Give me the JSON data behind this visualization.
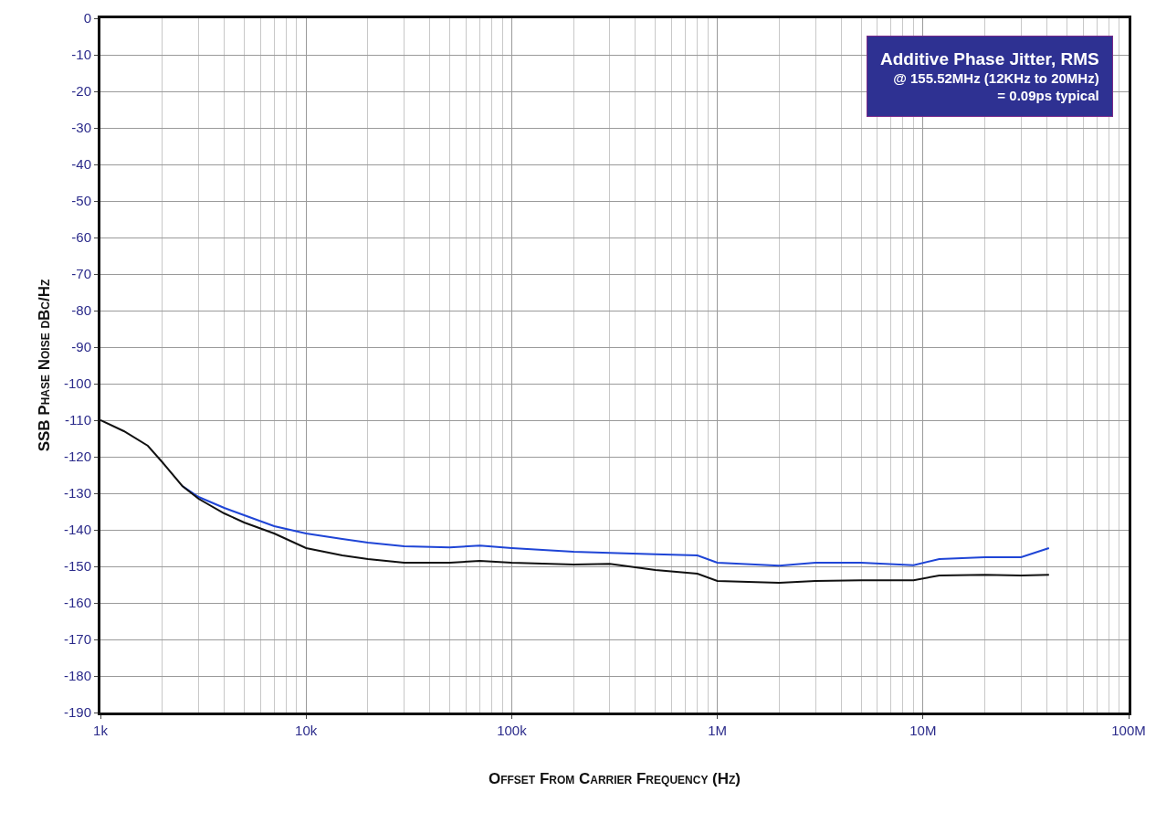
{
  "chart_data": {
    "type": "line",
    "xlabel": "Offset From Carrier Frequency (Hz)",
    "ylabel": "SSB Phase Noise dBc/Hz",
    "annotations": [
      "Additive Phase Jitter, RMS\n@ 155.52MHz (12KHz to 20MHz)\n= 0.09ps typical"
    ],
    "log": "x",
    "grid": true,
    "marker": "none",
    "line_style": "solid",
    "xlim": [
      1000,
      100000000
    ],
    "xticks": [
      {
        "value": 1000,
        "label": "1k"
      },
      {
        "value": 10000,
        "label": "10k"
      },
      {
        "value": 100000,
        "label": "100k"
      },
      {
        "value": 1000000,
        "label": "1M"
      },
      {
        "value": 10000000,
        "label": "10M"
      },
      {
        "value": 100000000,
        "label": "100M"
      }
    ],
    "ylim": [
      -190,
      0
    ],
    "yticks": [
      0,
      -10,
      -20,
      -30,
      -40,
      -50,
      -60,
      -70,
      -80,
      -90,
      -100,
      -110,
      -120,
      -130,
      -140,
      -150,
      -160,
      -170,
      -180,
      -190
    ],
    "x": [
      1000,
      1300,
      1700,
      2000,
      2500,
      3000,
      4000,
      5000,
      7000,
      10000,
      15000,
      20000,
      30000,
      50000,
      70000,
      100000,
      200000,
      300000,
      500000,
      800000,
      1000000,
      2000000,
      3000000,
      5000000,
      9000000,
      12000000,
      20000000,
      30000000,
      41000000
    ],
    "series": [
      {
        "color": "#1f45d6",
        "values": [
          null,
          null,
          null,
          null,
          -128,
          -131,
          -134,
          -136,
          -139,
          -141,
          -142.5,
          -143.5,
          -144.5,
          -144.8,
          -144.3,
          -145,
          -146,
          -146.3,
          -146.7,
          -147,
          -149,
          -149.8,
          -149,
          -149,
          -149.7,
          -148,
          -147.5,
          -147.5,
          -145
        ]
      },
      {
        "color": "#111111",
        "values": [
          -110,
          -113,
          -117,
          -121.5,
          -128,
          -131.5,
          -135.5,
          -138,
          -141,
          -145,
          -147,
          -148,
          -149,
          -149,
          -148.5,
          -149,
          -149.5,
          -149.3,
          -151,
          -152,
          -154,
          -154.5,
          -154,
          -153.8,
          -153.8,
          -152.5,
          -152.3,
          -152.5,
          -152.3
        ]
      }
    ]
  }
}
